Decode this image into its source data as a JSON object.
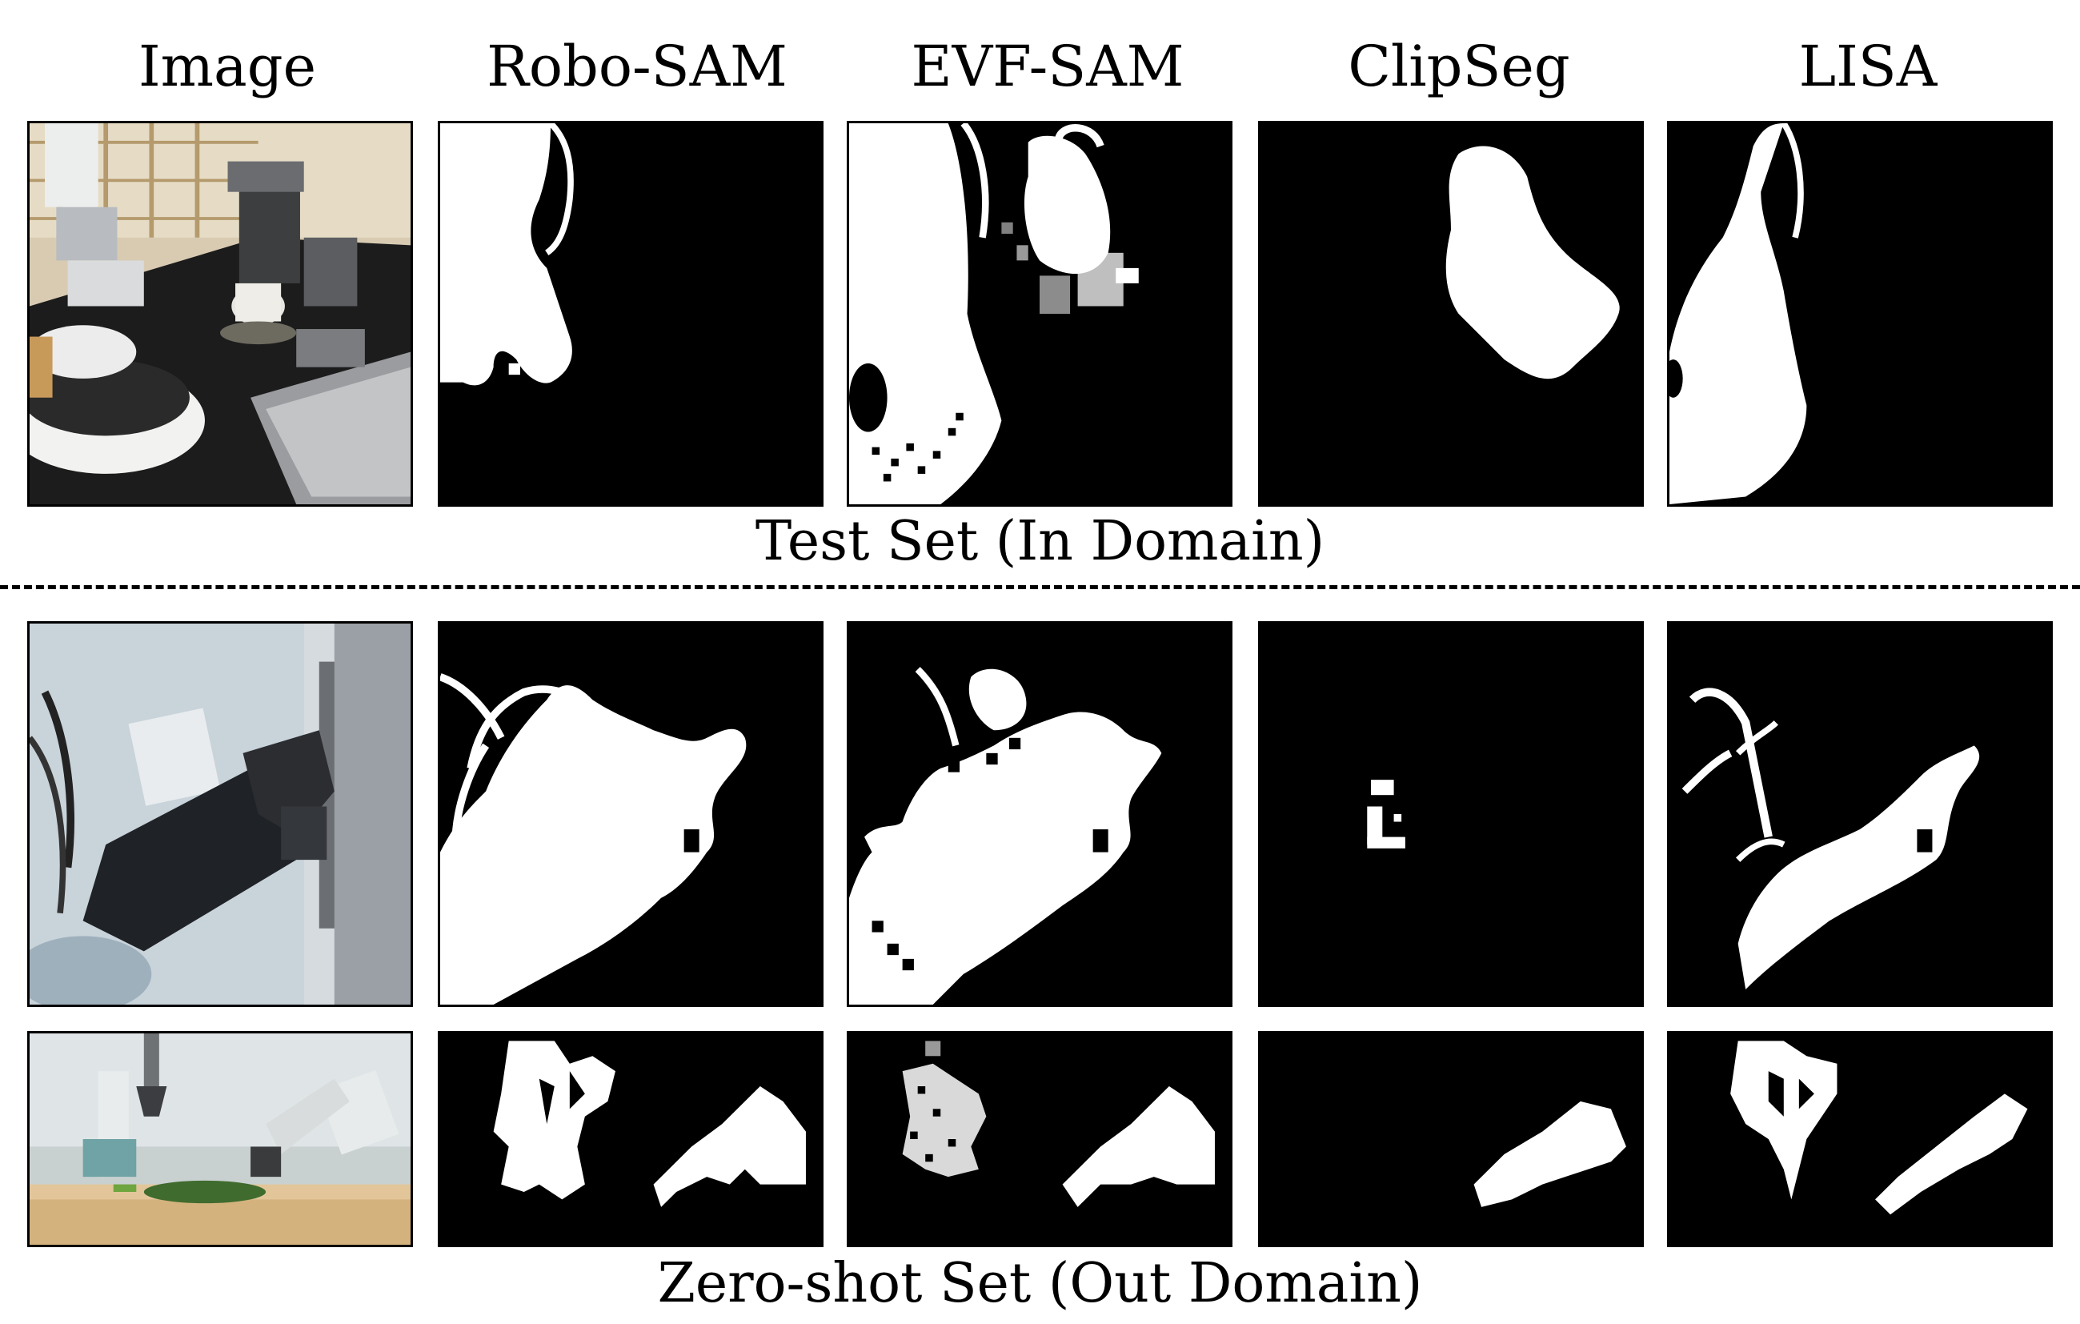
{
  "columns": [
    "Image",
    "Robo-SAM",
    "EVF-SAM",
    "ClipSeg",
    "LISA"
  ],
  "rows": {
    "test": {
      "caption": "Test Set (In Domain)"
    },
    "zeroshot": {
      "caption": "Zero-shot Set (Out Domain)"
    }
  },
  "colors": {
    "mask_foreground": "#ffffff",
    "mask_background": "#000000"
  }
}
